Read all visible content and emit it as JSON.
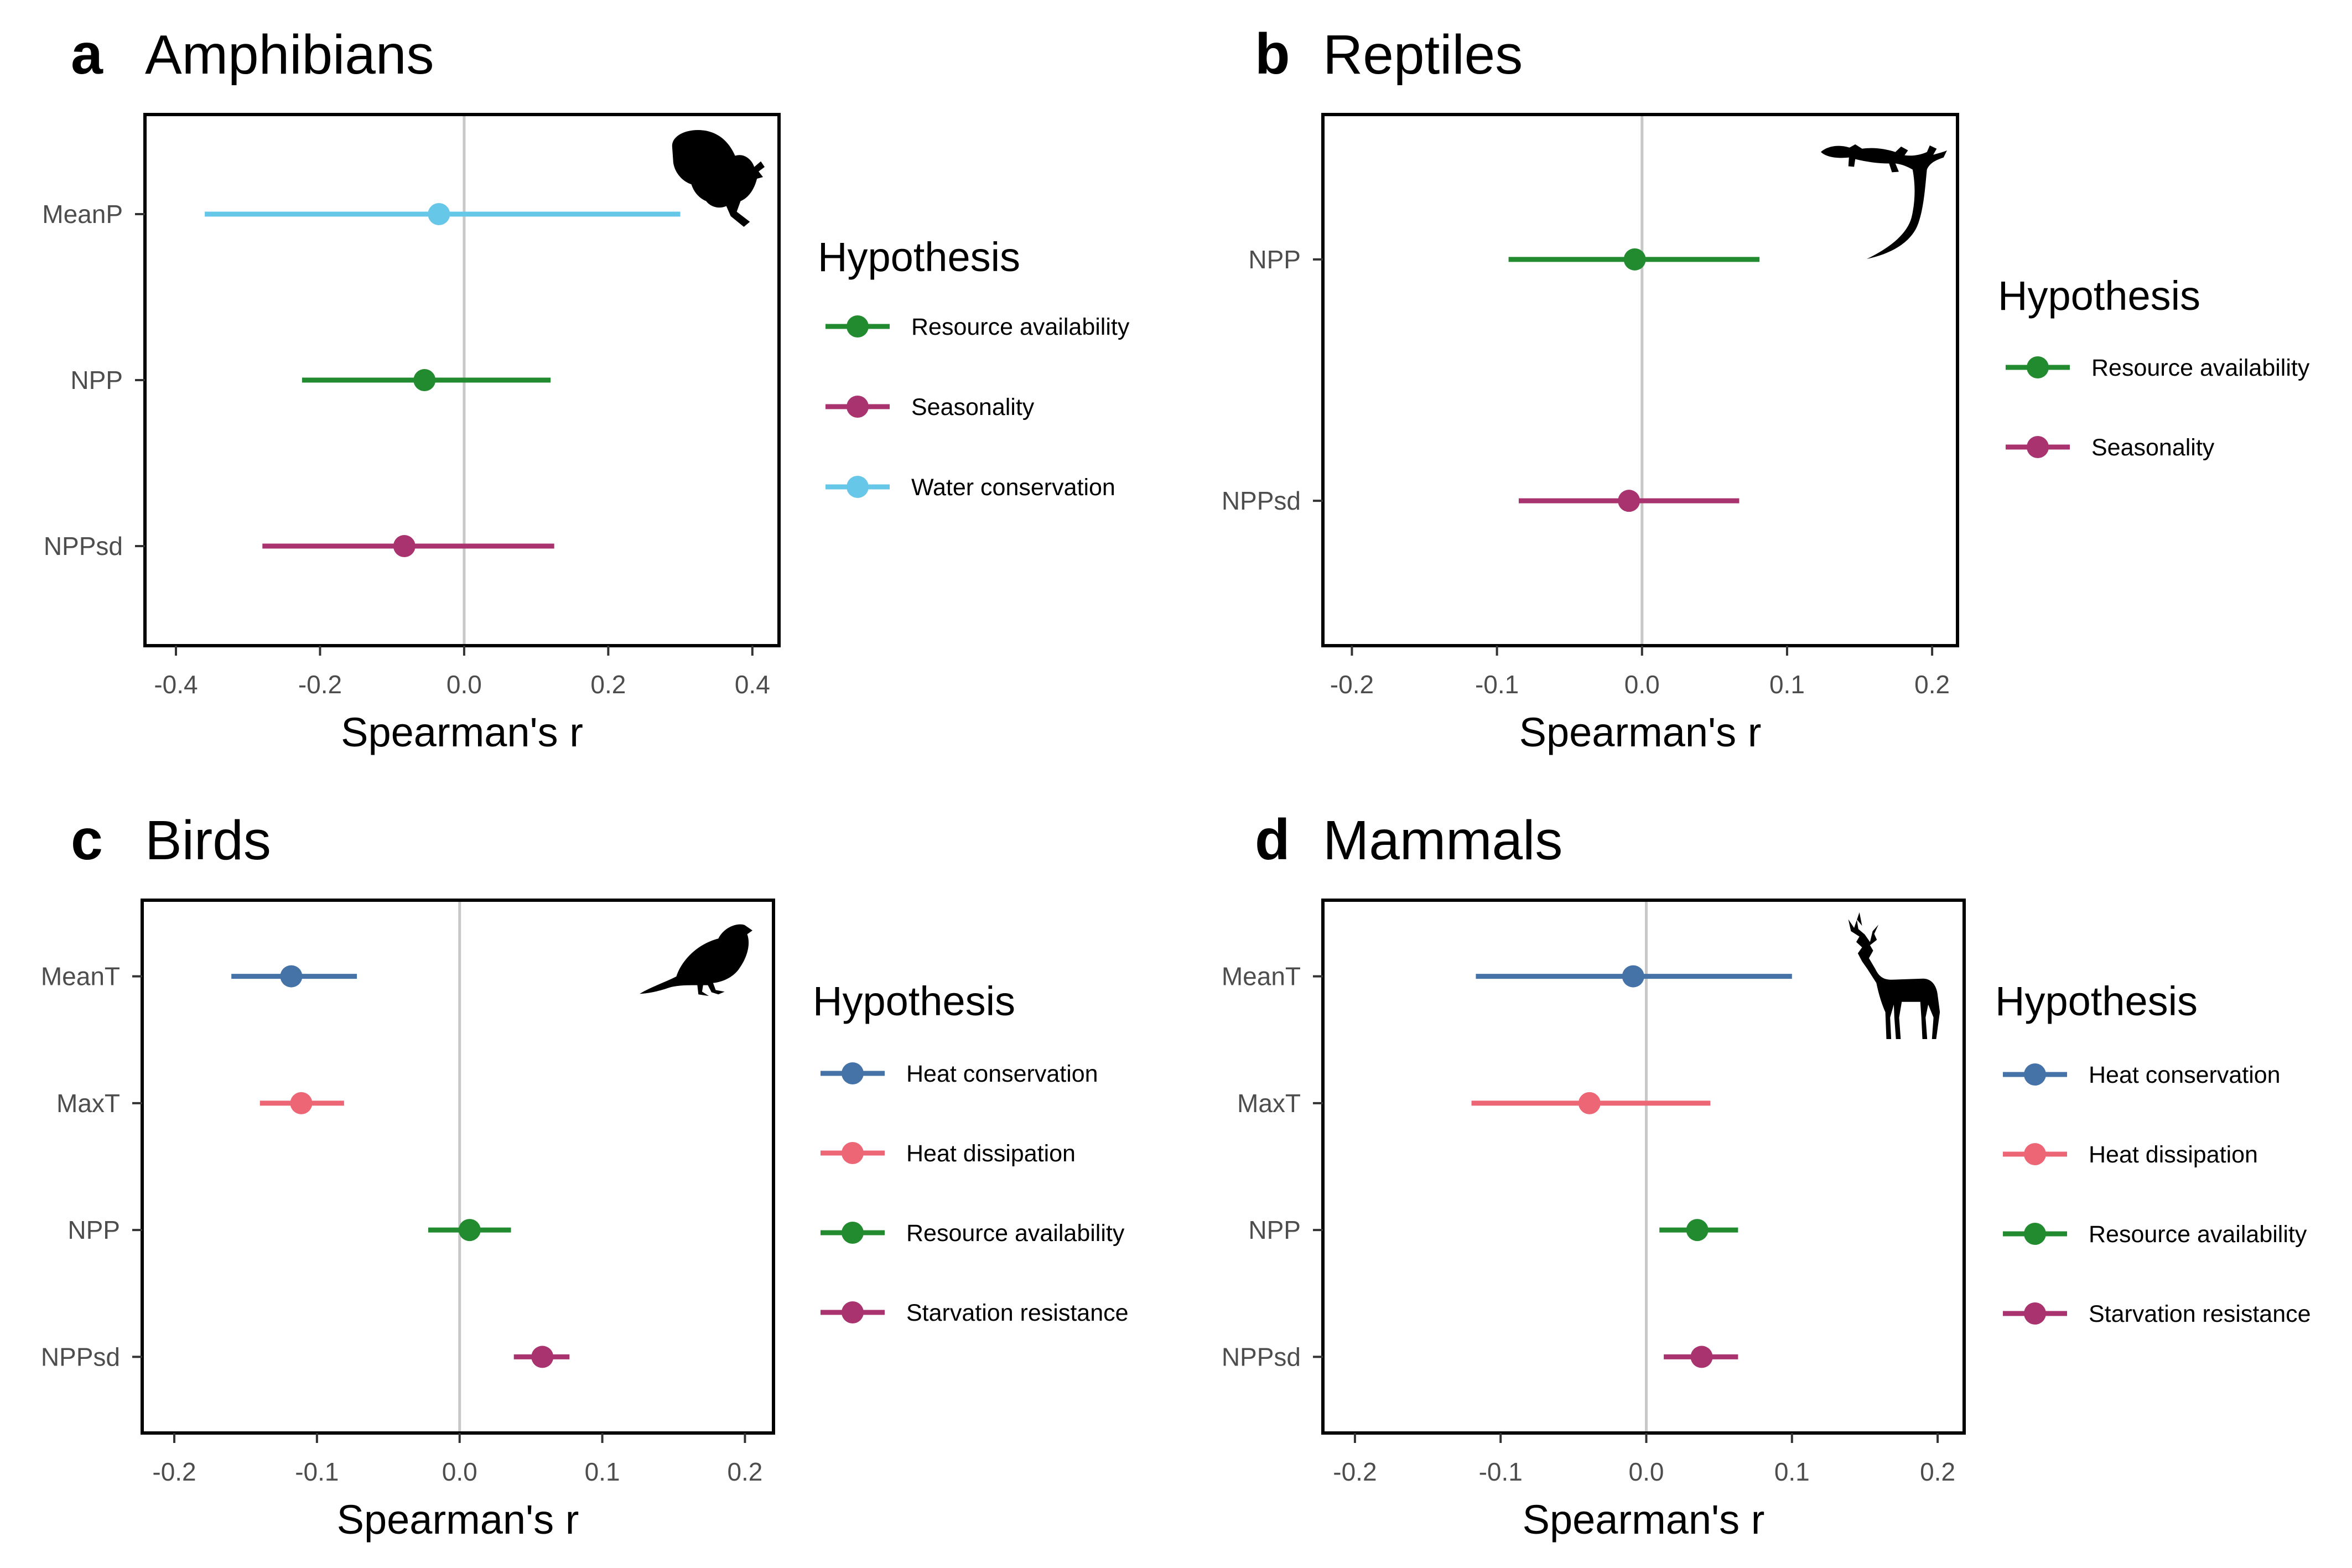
{
  "chart_data": [
    {
      "type": "forest",
      "panel_letter": "a",
      "title": "Amphibians",
      "xlabel": "Spearman's r",
      "ylabel": "",
      "xlim": [
        -0.443,
        0.437
      ],
      "x_ticks": [
        -0.4,
        -0.2,
        0.0,
        0.2,
        0.4
      ],
      "x_tick_labels": [
        "-0.4",
        "-0.2",
        "0.0",
        "0.2",
        "0.4"
      ],
      "categories": [
        "MeanP",
        "NPP",
        "NPPsd"
      ],
      "points": [
        {
          "category": "MeanP",
          "hypothesis": "Water conservation",
          "r": -0.035,
          "lower": -0.36,
          "upper": 0.3
        },
        {
          "category": "NPP",
          "hypothesis": "Resource availability",
          "r": -0.055,
          "lower": -0.225,
          "upper": 0.12
        },
        {
          "category": "NPPsd",
          "hypothesis": "Seasonality",
          "r": -0.083,
          "lower": -0.28,
          "upper": 0.125
        }
      ],
      "legend": {
        "title": "Hypothesis",
        "placement": "right",
        "items": [
          {
            "label": "Resource availability",
            "color": "#238b2f"
          },
          {
            "label": "Seasonality",
            "color": "#a8336e"
          },
          {
            "label": "Water conservation",
            "color": "#67c7e8"
          }
        ]
      },
      "silhouette_icon": "frog-icon",
      "zero_line": true,
      "grid": false
    },
    {
      "type": "forest",
      "panel_letter": "b",
      "title": "Reptiles",
      "xlabel": "Spearman's r",
      "ylabel": "",
      "xlim": [
        -0.22,
        0.2175
      ],
      "x_ticks": [
        -0.2,
        -0.1,
        0.0,
        0.1,
        0.2
      ],
      "x_tick_labels": [
        "-0.2",
        "-0.1",
        "0.0",
        "0.1",
        "0.2"
      ],
      "categories": [
        "NPP",
        "NPPsd"
      ],
      "points": [
        {
          "category": "NPP",
          "hypothesis": "Resource availability",
          "r": -0.005,
          "lower": -0.092,
          "upper": 0.081
        },
        {
          "category": "NPPsd",
          "hypothesis": "Seasonality",
          "r": -0.009,
          "lower": -0.085,
          "upper": 0.067
        }
      ],
      "legend": {
        "title": "Hypothesis",
        "placement": "right",
        "items": [
          {
            "label": "Resource availability",
            "color": "#238b2f"
          },
          {
            "label": "Seasonality",
            "color": "#a8336e"
          }
        ]
      },
      "silhouette_icon": "lizard-icon",
      "zero_line": true,
      "grid": false
    },
    {
      "type": "forest",
      "panel_letter": "c",
      "title": "Birds",
      "xlabel": "Spearman's r",
      "ylabel": "",
      "xlim": [
        -0.2225,
        0.22
      ],
      "x_ticks": [
        -0.2,
        -0.1,
        0.0,
        0.1,
        0.2
      ],
      "x_tick_labels": [
        "-0.2",
        "-0.1",
        "0.0",
        "0.1",
        "0.2"
      ],
      "categories": [
        "MeanT",
        "MaxT",
        "NPP",
        "NPPsd"
      ],
      "points": [
        {
          "category": "MeanT",
          "hypothesis": "Heat conservation",
          "r": -0.118,
          "lower": -0.16,
          "upper": -0.072
        },
        {
          "category": "MaxT",
          "hypothesis": "Heat dissipation",
          "r": -0.111,
          "lower": -0.14,
          "upper": -0.081
        },
        {
          "category": "NPP",
          "hypothesis": "Resource availability",
          "r": 0.007,
          "lower": -0.022,
          "upper": 0.036
        },
        {
          "category": "NPPsd",
          "hypothesis": "Starvation resistance",
          "r": 0.058,
          "lower": 0.038,
          "upper": 0.077
        }
      ],
      "legend": {
        "title": "Hypothesis",
        "placement": "right",
        "items": [
          {
            "label": "Heat conservation",
            "color": "#4572a7"
          },
          {
            "label": "Heat dissipation",
            "color": "#ec6675"
          },
          {
            "label": "Resource availability",
            "color": "#238b2f"
          },
          {
            "label": "Starvation resistance",
            "color": "#a8336e"
          }
        ]
      },
      "silhouette_icon": "bird-icon",
      "zero_line": true,
      "grid": false
    },
    {
      "type": "forest",
      "panel_letter": "d",
      "title": "Mammals",
      "xlabel": "Spearman's r",
      "ylabel": "",
      "xlim": [
        -0.222,
        0.2182
      ],
      "x_ticks": [
        -0.2,
        -0.1,
        0.0,
        0.1,
        0.2
      ],
      "x_tick_labels": [
        "-0.2",
        "-0.1",
        "0.0",
        "0.1",
        "0.2"
      ],
      "categories": [
        "MeanT",
        "MaxT",
        "NPP",
        "NPPsd"
      ],
      "points": [
        {
          "category": "MeanT",
          "hypothesis": "Heat conservation",
          "r": -0.009,
          "lower": -0.117,
          "upper": 0.1
        },
        {
          "category": "MaxT",
          "hypothesis": "Heat dissipation",
          "r": -0.039,
          "lower": -0.12,
          "upper": 0.044
        },
        {
          "category": "NPP",
          "hypothesis": "Resource availability",
          "r": 0.035,
          "lower": 0.009,
          "upper": 0.063
        },
        {
          "category": "NPPsd",
          "hypothesis": "Starvation resistance",
          "r": 0.038,
          "lower": 0.012,
          "upper": 0.063
        }
      ],
      "legend": {
        "title": "Hypothesis",
        "placement": "right",
        "items": [
          {
            "label": "Heat conservation",
            "color": "#4572a7"
          },
          {
            "label": "Heat dissipation",
            "color": "#ec6675"
          },
          {
            "label": "Resource availability",
            "color": "#238b2f"
          },
          {
            "label": "Starvation resistance",
            "color": "#a8336e"
          }
        ]
      },
      "silhouette_icon": "deer-icon",
      "zero_line": true,
      "grid": false
    }
  ]
}
